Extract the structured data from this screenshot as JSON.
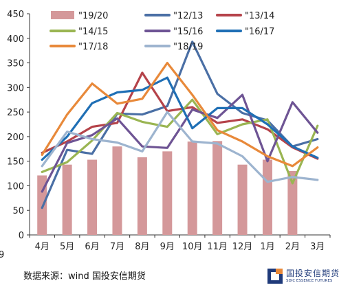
{
  "chart_data": {
    "type": "bar+line",
    "categories": [
      "4月",
      "5月",
      "6月",
      "7月",
      "8月",
      "9月",
      "10月",
      "11月",
      "12月",
      "1月",
      "2月",
      "3月"
    ],
    "ylim": [
      0,
      450
    ],
    "yticks": [
      0,
      50,
      100,
      150,
      200,
      250,
      300,
      350,
      400,
      450
    ],
    "grid": false,
    "legend_position": "top",
    "bar_series": {
      "name": "\"19/20",
      "color": "#d4989a",
      "values": [
        121,
        143,
        153,
        180,
        158,
        170,
        190,
        191,
        143,
        153,
        130,
        null
      ]
    },
    "series": [
      {
        "name": "\"12/13",
        "color": "#4a6fa5",
        "values": [
          55,
          173,
          165,
          247,
          245,
          262,
          393,
          287,
          248,
          233,
          180,
          195
        ]
      },
      {
        "name": "\"13/14",
        "color": "#b5434a",
        "values": [
          167,
          190,
          220,
          228,
          330,
          252,
          260,
          228,
          235,
          215,
          178,
          155
        ]
      },
      {
        "name": "\"14/15",
        "color": "#9ab552",
        "values": [
          128,
          148,
          192,
          248,
          230,
          220,
          275,
          205,
          225,
          235,
          105,
          222
        ]
      },
      {
        "name": "\"15/16",
        "color": "#6e5494",
        "values": [
          88,
          187,
          203,
          237,
          180,
          177,
          255,
          238,
          285,
          150,
          270,
          208
        ]
      },
      {
        "name": "\"16/17",
        "color": "#1f6fb5",
        "values": [
          153,
          200,
          268,
          290,
          295,
          320,
          217,
          258,
          258,
          225,
          180,
          157
        ]
      },
      {
        "name": "\"17/18",
        "color": "#e8893a",
        "values": [
          163,
          245,
          308,
          267,
          277,
          350,
          285,
          213,
          190,
          160,
          140,
          178
        ]
      },
      {
        "name": "\"18/19",
        "color": "#9db4cf",
        "values": [
          140,
          210,
          195,
          188,
          170,
          250,
          190,
          186,
          160,
          108,
          118,
          112
        ]
      }
    ]
  },
  "footer": {
    "source": "数据来源：wind 国投安信期货",
    "cut_glyph": "9",
    "logo_cn": "国投安信期货",
    "logo_en": "SDIC ESSENCE FUTURES"
  },
  "colors": {
    "logo_blue": "#1f3a7a",
    "logo_orange": "#e8893a"
  }
}
